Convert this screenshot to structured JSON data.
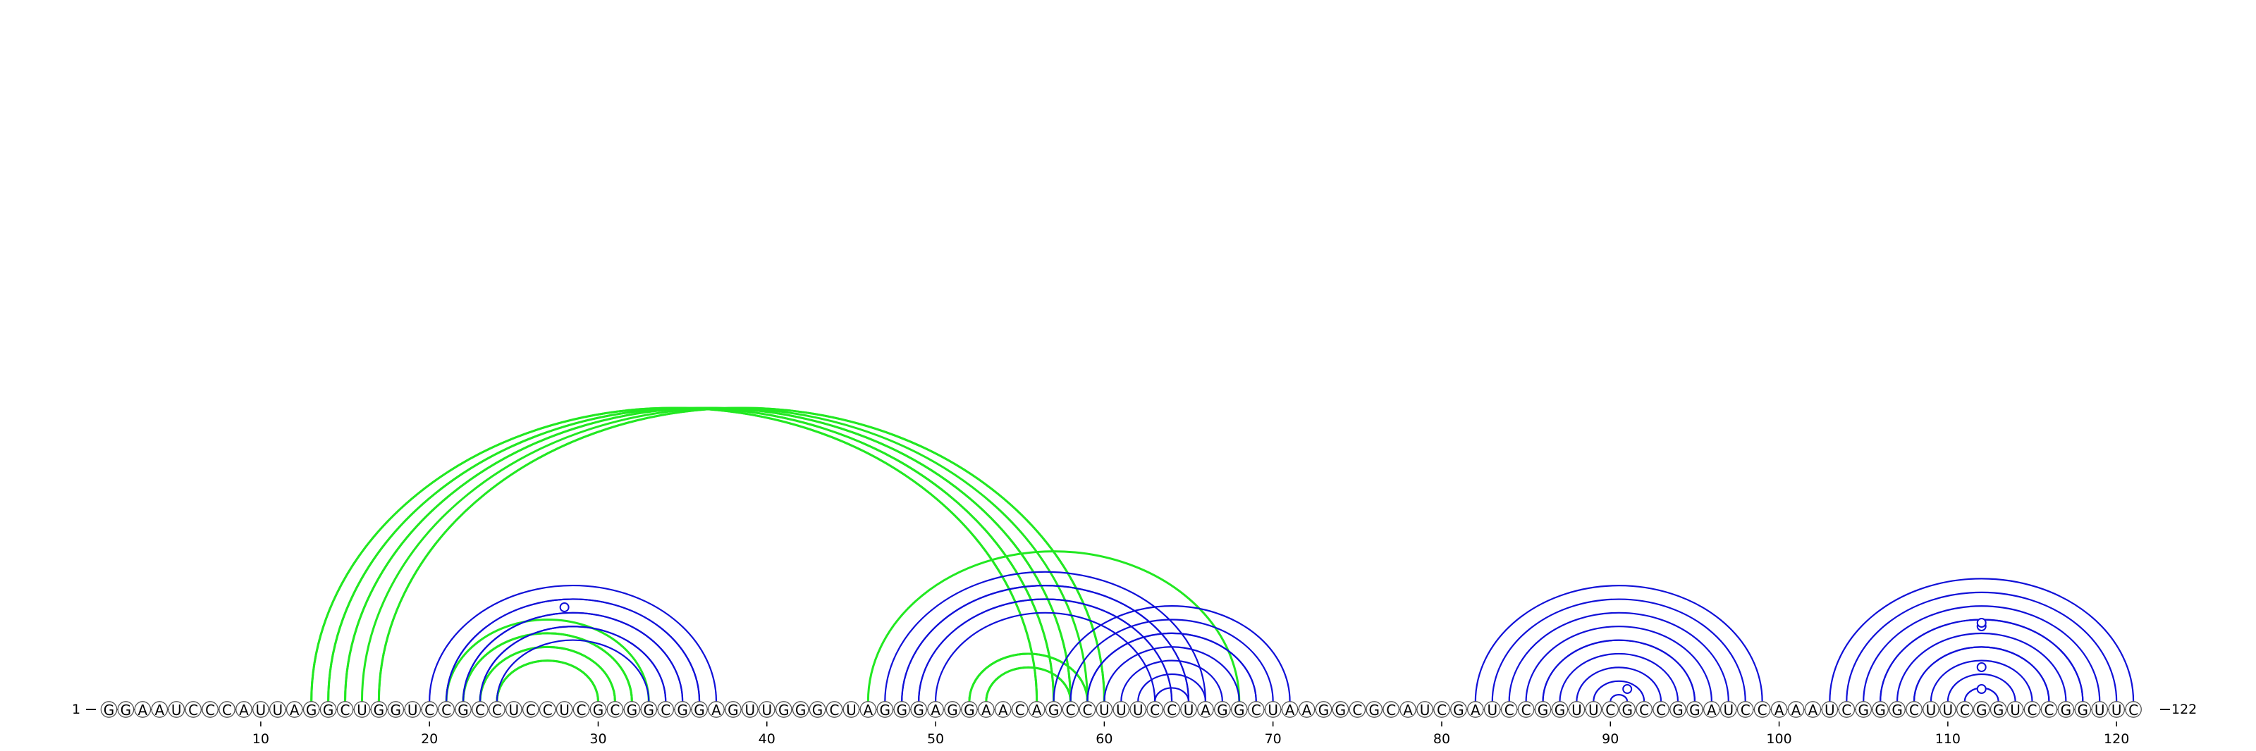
{
  "sequence": "GGAAUCCCAUUAGGCUGGUCCGCCUCCUCGCGGCGGAGUUGGGCUAGGGAGGAACAGCCUUUCCUAGGCUAAGGCGCAUCGAUCCGGUUCGCCGGAUCCAAAUCGGGCUUCGGUCCGGUUC",
  "start_label": "1",
  "end_label": "122",
  "length": 122,
  "tick_positions": [
    10,
    20,
    30,
    40,
    50,
    60,
    70,
    80,
    90,
    100,
    110,
    120
  ],
  "tick_labels": [
    "10",
    "20",
    "30",
    "40",
    "50",
    "60",
    "70",
    "80",
    "90",
    "100",
    "110",
    "120"
  ],
  "colors": {
    "blue_pairs": "#1010d8",
    "green_pairs": "#22e822",
    "text": "#000000",
    "circle_stroke": "#555555"
  },
  "blue_pairs": [
    [
      20,
      37
    ],
    [
      21,
      36
    ],
    [
      21,
      36
    ],
    [
      22,
      35
    ],
    [
      22,
      35
    ],
    [
      23,
      34
    ],
    [
      23,
      34
    ],
    [
      24,
      33
    ],
    [
      47,
      66
    ],
    [
      48,
      65
    ],
    [
      48,
      65
    ],
    [
      49,
      64
    ],
    [
      49,
      64
    ],
    [
      50,
      63
    ],
    [
      57,
      71
    ],
    [
      58,
      70
    ],
    [
      59,
      69
    ],
    [
      59,
      69
    ],
    [
      60,
      68
    ],
    [
      61,
      67
    ],
    [
      62,
      66
    ],
    [
      63,
      65
    ],
    [
      82,
      99
    ],
    [
      83,
      98
    ],
    [
      84,
      97
    ],
    [
      85,
      96
    ],
    [
      86,
      95
    ],
    [
      86,
      95
    ],
    [
      87,
      94
    ],
    [
      88,
      93
    ],
    [
      89,
      92
    ],
    [
      90,
      91
    ],
    [
      103,
      121
    ],
    [
      104,
      120
    ],
    [
      105,
      119
    ],
    [
      106,
      118
    ],
    [
      106,
      118
    ],
    [
      107,
      117
    ],
    [
      108,
      116
    ],
    [
      108,
      116
    ],
    [
      109,
      115
    ],
    [
      110,
      114
    ],
    [
      111,
      113
    ],
    [
      112,
      112
    ]
  ],
  "green_pairs": [
    [
      13,
      56
    ],
    [
      13,
      56
    ],
    [
      14,
      57
    ],
    [
      14,
      57
    ],
    [
      15,
      58
    ],
    [
      15,
      58
    ],
    [
      16,
      59
    ],
    [
      17,
      60
    ],
    [
      17,
      60
    ],
    [
      21,
      33
    ],
    [
      22,
      32
    ],
    [
      22,
      32
    ],
    [
      23,
      31
    ],
    [
      23,
      31
    ],
    [
      24,
      30
    ],
    [
      24,
      30
    ],
    [
      46,
      68
    ],
    [
      52,
      59
    ],
    [
      52,
      59
    ],
    [
      53,
      58
    ],
    [
      53,
      58
    ]
  ]
}
